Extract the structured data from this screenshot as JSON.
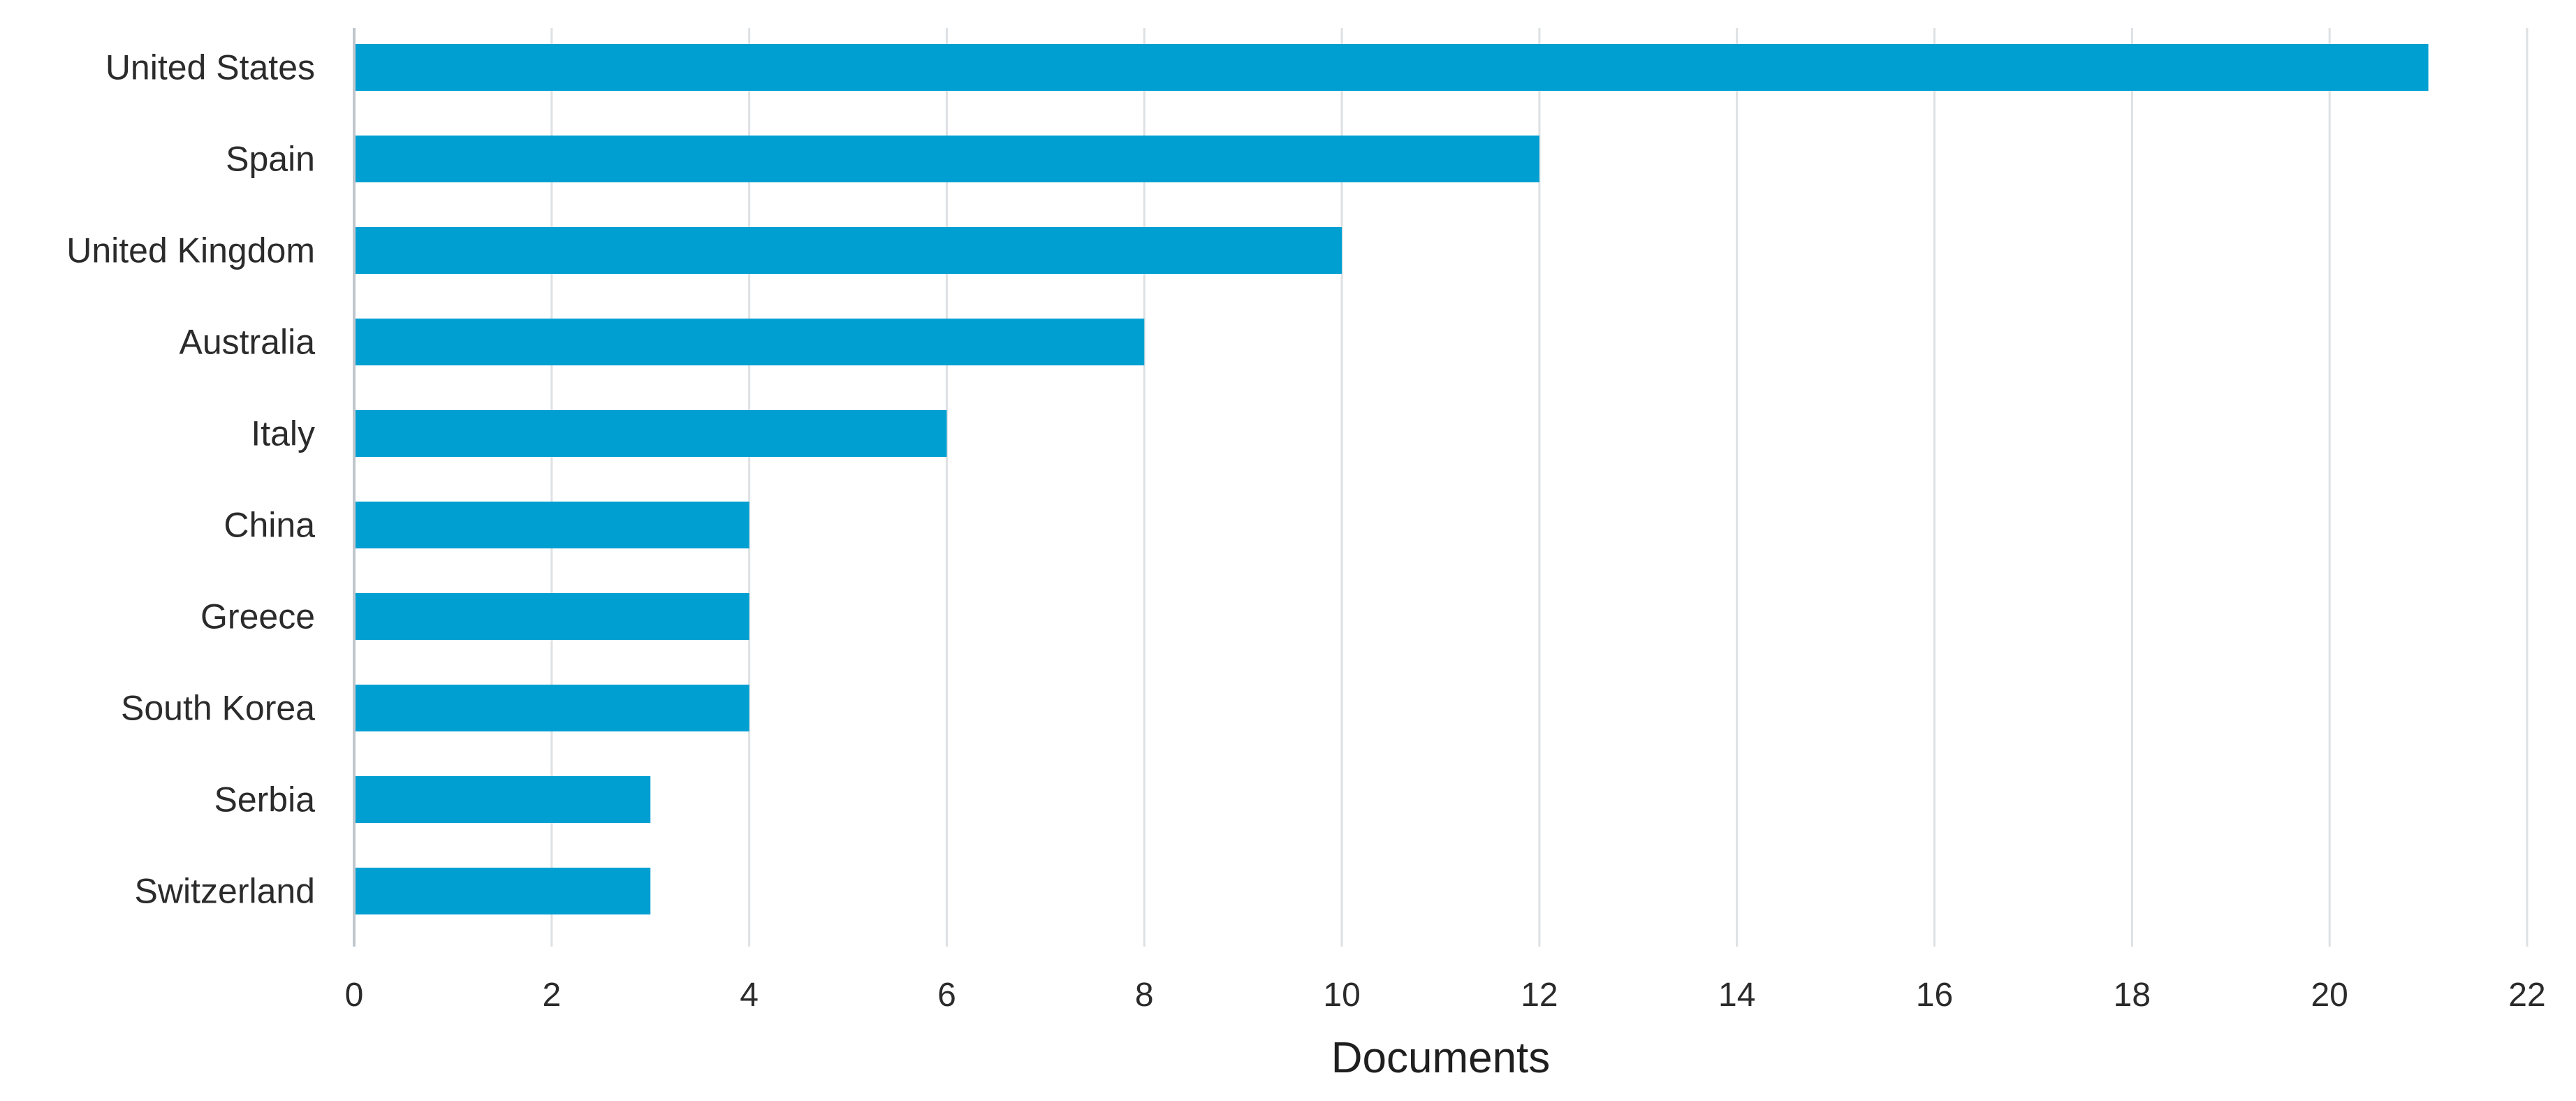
{
  "chart_data": {
    "type": "bar",
    "orientation": "horizontal",
    "categories": [
      "United States",
      "Spain",
      "United Kingdom",
      "Australia",
      "Italy",
      "China",
      "Greece",
      "South Korea",
      "Serbia",
      "Switzerland"
    ],
    "values": [
      21,
      12,
      10,
      8,
      6,
      4,
      4,
      4,
      3,
      3
    ],
    "title": "",
    "xlabel": "Documents",
    "ylabel": "",
    "xlim": [
      0,
      22
    ],
    "x_ticks": [
      "0",
      "2",
      "4",
      "6",
      "8",
      "10",
      "12",
      "14",
      "16",
      "18",
      "20",
      "22"
    ],
    "grid": "vertical",
    "legend": "none",
    "colors": {
      "bar": "#009fd2",
      "grid": "#dde1e4",
      "axis": "#bfc6cc"
    }
  }
}
